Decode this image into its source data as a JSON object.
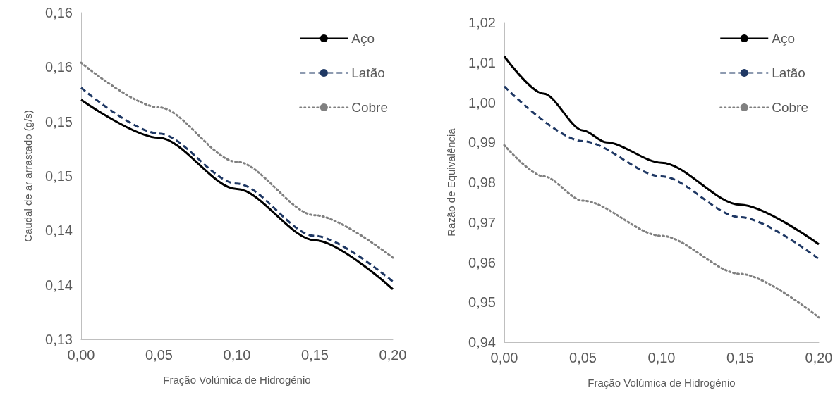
{
  "chart_data": [
    {
      "type": "line",
      "xlabel": "Fração Volúmica de Hidrogénio",
      "ylabel": "Caudal de ar arrastado (g/s)",
      "x": [
        0,
        0.05,
        0.1,
        0.15,
        0.2
      ],
      "series": [
        {
          "name": "Aço",
          "color": "#000000",
          "line_style": "solid",
          "values": [
            0.152,
            0.1485,
            0.1438,
            0.1391,
            0.1346
          ]
        },
        {
          "name": "Latão",
          "color": "#1f3864",
          "line_style": "dashed",
          "values": [
            0.1531,
            0.1489,
            0.1443,
            0.1395,
            0.1353
          ]
        },
        {
          "name": "Cobre",
          "color": "#808080",
          "line_style": "dotted",
          "values": [
            0.1554,
            0.1513,
            0.1463,
            0.1414,
            0.1375
          ]
        }
      ],
      "xlim": [
        0,
        0.2
      ],
      "xticks": [
        {
          "value": 0,
          "label": "0,00"
        },
        {
          "value": 0.05,
          "label": "0,05"
        },
        {
          "value": 0.1,
          "label": "0,10"
        },
        {
          "value": 0.15,
          "label": "0,15"
        },
        {
          "value": 0.2,
          "label": "0,20"
        }
      ],
      "ylim": [
        0.13,
        0.16
      ],
      "yticks": [
        {
          "value": 0.13,
          "label": "0,13"
        },
        {
          "value": 0.135,
          "label": "0,14"
        },
        {
          "value": 0.14,
          "label": "0,14"
        },
        {
          "value": 0.145,
          "label": "0,15"
        },
        {
          "value": 0.15,
          "label": "0,15"
        },
        {
          "value": 0.155,
          "label": "0,16"
        },
        {
          "value": 0.16,
          "label": "0,16"
        }
      ],
      "grid": false,
      "legend": "top right",
      "marker": "none"
    },
    {
      "type": "line",
      "xlabel": "Fração Volúmica de Hidrogénio",
      "ylabel": "Razão de Equivalência",
      "series": [
        {
          "name": "Aço",
          "color": "#000000",
          "line_style": "solid",
          "x": [
            0,
            0.025,
            0.05,
            0.065,
            0.1,
            0.15,
            0.2
          ],
          "values": [
            1.0115,
            1.0022,
            0.993,
            0.99,
            0.9849,
            0.9744,
            0.9645
          ]
        },
        {
          "name": "Latão",
          "color": "#1f3864",
          "line_style": "dashed",
          "x": [
            0,
            0.05,
            0.1,
            0.15,
            0.2
          ],
          "values": [
            1.004,
            0.9903,
            0.9815,
            0.9713,
            0.9608
          ]
        },
        {
          "name": "Cobre",
          "color": "#808080",
          "line_style": "dotted",
          "x": [
            0,
            0.025,
            0.05,
            0.1,
            0.15,
            0.2
          ],
          "values": [
            0.9893,
            0.9815,
            0.9754,
            0.9666,
            0.9571,
            0.9462
          ]
        }
      ],
      "xlim": [
        0,
        0.2
      ],
      "xticks": [
        {
          "value": 0,
          "label": "0,00"
        },
        {
          "value": 0.05,
          "label": "0,05"
        },
        {
          "value": 0.1,
          "label": "0,10"
        },
        {
          "value": 0.15,
          "label": "0,15"
        },
        {
          "value": 0.2,
          "label": "0,20"
        }
      ],
      "ylim": [
        0.94,
        1.02
      ],
      "yticks": [
        {
          "value": 0.94,
          "label": "0,94"
        },
        {
          "value": 0.95,
          "label": "0,95"
        },
        {
          "value": 0.96,
          "label": "0,96"
        },
        {
          "value": 0.97,
          "label": "0,97"
        },
        {
          "value": 0.98,
          "label": "0,98"
        },
        {
          "value": 0.99,
          "label": "0,99"
        },
        {
          "value": 1.0,
          "label": "1,00"
        },
        {
          "value": 1.01,
          "label": "1,01"
        },
        {
          "value": 1.02,
          "label": "1,02"
        }
      ],
      "grid": false,
      "legend": "top right",
      "marker": "none"
    }
  ]
}
